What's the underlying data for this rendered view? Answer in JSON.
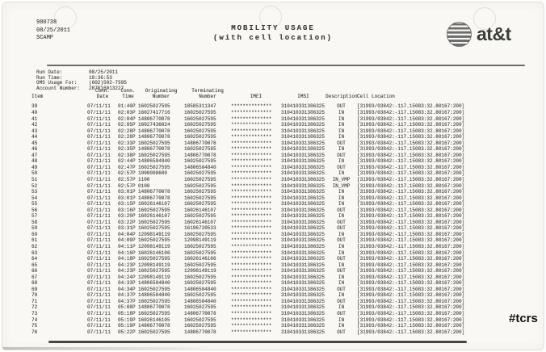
{
  "document": {
    "ref_number": "980738",
    "ref_date": "08/25/2011",
    "ref_code": "SCAMP",
    "title_line1": "MOBILITY USAGE",
    "title_line2": "(with cell location)",
    "brand_text": "at&t",
    "handwritten_tag": "#tcrs"
  },
  "run_info": [
    {
      "label": "Run Date:",
      "value": "08/25/2011"
    },
    {
      "label": "Run Time:",
      "value": "10:36:53"
    },
    {
      "label": "OMS Usage For:",
      "value": "(602)502-7595"
    },
    {
      "label": "Account Number:",
      "value": "287016013227"
    }
  ],
  "table": {
    "columns": [
      {
        "key": "item",
        "label": "Item"
      },
      {
        "key": "conn-date",
        "label": "Conn.\nDate"
      },
      {
        "key": "conn-time",
        "label": "Conn.\nTime"
      },
      {
        "key": "originating-number",
        "label": "Originating\nNumber"
      },
      {
        "key": "terminating-number",
        "label": "Terminating\nNumber"
      },
      {
        "key": "imei",
        "label": "IMEI"
      },
      {
        "key": "imsi",
        "label": "IMSI"
      },
      {
        "key": "description",
        "label": "Description"
      },
      {
        "key": "cell-location",
        "label": "Cell Location"
      }
    ],
    "rows": [
      [
        "39",
        "07/11/11",
        "01:40P",
        "16025027595",
        "18585311347",
        "**************",
        "310410331386325",
        "OUT",
        "[31993/03842:-117.15083:32.80167:200]"
      ],
      [
        "40",
        "07/11/11",
        "02:03P",
        "16027417716",
        "16025027595",
        "**************",
        "310410331386325",
        "IN",
        "[31993/03842:-117.15083:32.80167:200]"
      ],
      [
        "41",
        "07/11/11",
        "02:04P",
        "14806770078",
        "16025027595",
        "**************",
        "310410331386325",
        "IN",
        "[31993/03842:-117.15083:32.80167:200]"
      ],
      [
        "42",
        "07/11/11",
        "02:05P",
        "16027436024",
        "16025027595",
        "**************",
        "310410331386325",
        "IN",
        "[31993/03842:-117.15083:32.80167:200]"
      ],
      [
        "43",
        "07/11/11",
        "02:28P",
        "14806770078",
        "16025027595",
        "**************",
        "310410331386325",
        "IN",
        "[31993/03842:-117.15083:32.80167:200]"
      ],
      [
        "44",
        "07/11/11",
        "02:28P",
        "14806770078",
        "16025027595",
        "**************",
        "310410331386325",
        "IN",
        "[31993/03842:-117.15083:32.80167:200]"
      ],
      [
        "45",
        "07/11/11",
        "02:33P",
        "16025027595",
        "14806770078",
        "**************",
        "310410331386325",
        "OUT",
        "[31993/03842:-117.15083:32.80167:200]"
      ],
      [
        "46",
        "07/11/11",
        "02:35P",
        "14806770078",
        "16025027595",
        "**************",
        "310410331386325",
        "IN",
        "[31993/03842:-117.15083:32.80167:200]"
      ],
      [
        "47",
        "07/11/11",
        "02:38P",
        "16025027595",
        "14806770078",
        "**************",
        "310410331386325",
        "OUT",
        "[31993/03842:-117.15083:32.80167:200]"
      ],
      [
        "48",
        "07/11/11",
        "02:44P",
        "14806504840",
        "16025027595",
        "**************",
        "310410331386325",
        "IN",
        "[31993/03842:-117.15083:32.80167:200]"
      ],
      [
        "49",
        "07/11/11",
        "02:47P",
        "16025027595",
        "14806504840",
        "**************",
        "310410331386325",
        "OUT",
        "[31993/03842:-117.15083:32.80167:200]"
      ],
      [
        "50",
        "07/11/11",
        "02:57P",
        "1000000600",
        "16025027595",
        "**************",
        "310410331386325",
        "IN",
        "[31993/03842:-117.15083:32.80167:200]"
      ],
      [
        "51",
        "07/11/11",
        "02:57P",
        "1100",
        "16025027595",
        "**************",
        "310410331386325",
        "IN_VMP",
        "[31993/03842:-117.15083:32.80167:200]"
      ],
      [
        "52",
        "07/11/11",
        "02:57P",
        "0100",
        "16025027595",
        "**************",
        "310410331386325",
        "IN_VMP",
        "[31993/03842:-117.15083:32.80167:200]"
      ],
      [
        "53",
        "07/11/11",
        "03:01P",
        "14806770078",
        "16025027595",
        "**************",
        "310410331386325",
        "IN",
        "[31993/03842:-117.15083:32.80167:200]"
      ],
      [
        "54",
        "07/11/11",
        "03:01P",
        "14806770078",
        "16025027595",
        "**************",
        "310410331386325",
        "IN",
        "[31993/03842:-117.15083:32.80167:200]"
      ],
      [
        "55",
        "07/11/11",
        "03:15P",
        "16026146107",
        "16025027595",
        "**************",
        "310410331386325",
        "IN",
        "[31993/03842:-117.15083:32.80167:200]"
      ],
      [
        "56",
        "07/11/11",
        "03:16P",
        "16025027595",
        "16026146107",
        "**************",
        "310410331386325",
        "OUT",
        "[31993/03842:-117.15083:32.80167:200]"
      ],
      [
        "57",
        "07/11/11",
        "03:20P",
        "16026146107",
        "16025027595",
        "**************",
        "310410331386325",
        "IN",
        "[31993/03842:-117.15083:32.80167:200]"
      ],
      [
        "58",
        "07/11/11",
        "03:22P",
        "16025027595",
        "16026146107",
        "**************",
        "310410331386325",
        "OUT",
        "[31993/03842:-117.15083:32.80167:200]"
      ],
      [
        "59",
        "07/11/11",
        "03:31P",
        "16025027595",
        "16196720533",
        "**************",
        "310410331386325",
        "OUT",
        "[31993/03842:-117.15083:32.80167:200]"
      ],
      [
        "60",
        "07/11/11",
        "04:04P",
        "12098149119",
        "16025027595",
        "**************",
        "310410331386325",
        "IN",
        "[31993/03842:-117.15083:32.80167:200]"
      ],
      [
        "61",
        "07/11/11",
        "04:09P",
        "16025027595",
        "12098149119",
        "**************",
        "310410331386325",
        "OUT",
        "[31993/03842:-117.15083:32.80167:200]"
      ],
      [
        "62",
        "07/11/11",
        "04:11P",
        "12098149119",
        "16025027595",
        "**************",
        "310410331386325",
        "IN",
        "[31993/03842:-117.15083:32.80167:200]"
      ],
      [
        "63",
        "07/11/11",
        "04:16P",
        "16026146106",
        "16025027595",
        "**************",
        "310410331386325",
        "IN",
        "[31993/03842:-117.15083:32.80167:200]"
      ],
      [
        "64",
        "07/11/11",
        "04:18P",
        "16025027595",
        "16026146106",
        "**************",
        "310410331386325",
        "OUT",
        "[31993/03842:-117.15083:32.80167:200]"
      ],
      [
        "65",
        "07/11/11",
        "04:23P",
        "12098149119",
        "16025027595",
        "**************",
        "310410331386325",
        "IN",
        "[31993/03842:-117.15083:32.80167:200]"
      ],
      [
        "66",
        "07/11/11",
        "04:23P",
        "16025027595",
        "12098149119",
        "**************",
        "310410331386325",
        "OUT",
        "[31993/03842:-117.15083:32.80167:200]"
      ],
      [
        "67",
        "07/11/11",
        "04:24P",
        "12098149119",
        "16025027595",
        "**************",
        "310410331386325",
        "IN",
        "[31993/03842:-117.15083:32.80167:200]"
      ],
      [
        "68",
        "07/11/11",
        "04:33P",
        "14806504840",
        "16025027595",
        "**************",
        "310410331386325",
        "IN",
        "[31993/03842:-117.15083:32.80167:200]"
      ],
      [
        "69",
        "07/11/11",
        "04:34P",
        "16025027595",
        "14806504840",
        "**************",
        "310410331386325",
        "OUT",
        "[31993/03842:-117.15083:32.80167:200]"
      ],
      [
        "70",
        "07/11/11",
        "04:37P",
        "14806504840",
        "16025027595",
        "**************",
        "310410331386325",
        "IN",
        "[31993/03842:-117.15083:32.80167:200]"
      ],
      [
        "71",
        "07/11/11",
        "04:37P",
        "16025027595",
        "14806504840",
        "**************",
        "310410331386325",
        "OUT",
        "[31993/03842:-117.15083:32.80167:200]"
      ],
      [
        "72",
        "07/11/11",
        "05:08P",
        "14806770078",
        "16025027595",
        "**************",
        "310410331386325",
        "IN",
        "[31993/03842:-117.15083:32.80167:200]"
      ],
      [
        "73",
        "07/11/11",
        "05:18P",
        "16025027595",
        "14806770078",
        "**************",
        "310410331386325",
        "OUT",
        "[31993/03842:-117.15083:32.80167:200]"
      ],
      [
        "74",
        "07/11/11",
        "05:19P",
        "16026146105",
        "16025027595",
        "**************",
        "310410331386325",
        "IN",
        "[31993/03842:-117.15083:32.80167:200]"
      ],
      [
        "75",
        "07/11/11",
        "05:19P",
        "14806770078",
        "16025027595",
        "**************",
        "310410331386325",
        "IN",
        "[31993/03842:-117.15083:32.80167:200]"
      ],
      [
        "76",
        "07/11/11",
        "05:22P",
        "16025027595",
        "14806770078",
        "**************",
        "310410331386325",
        "OUT",
        "[31993/03842:-117.15083:32.80167:200]"
      ]
    ]
  },
  "colors": {
    "paper": "#f9f8f4",
    "text": "#494949",
    "dark_text": "#3e3e3e",
    "rule": "#6b6b68",
    "annotation": "#141414"
  }
}
